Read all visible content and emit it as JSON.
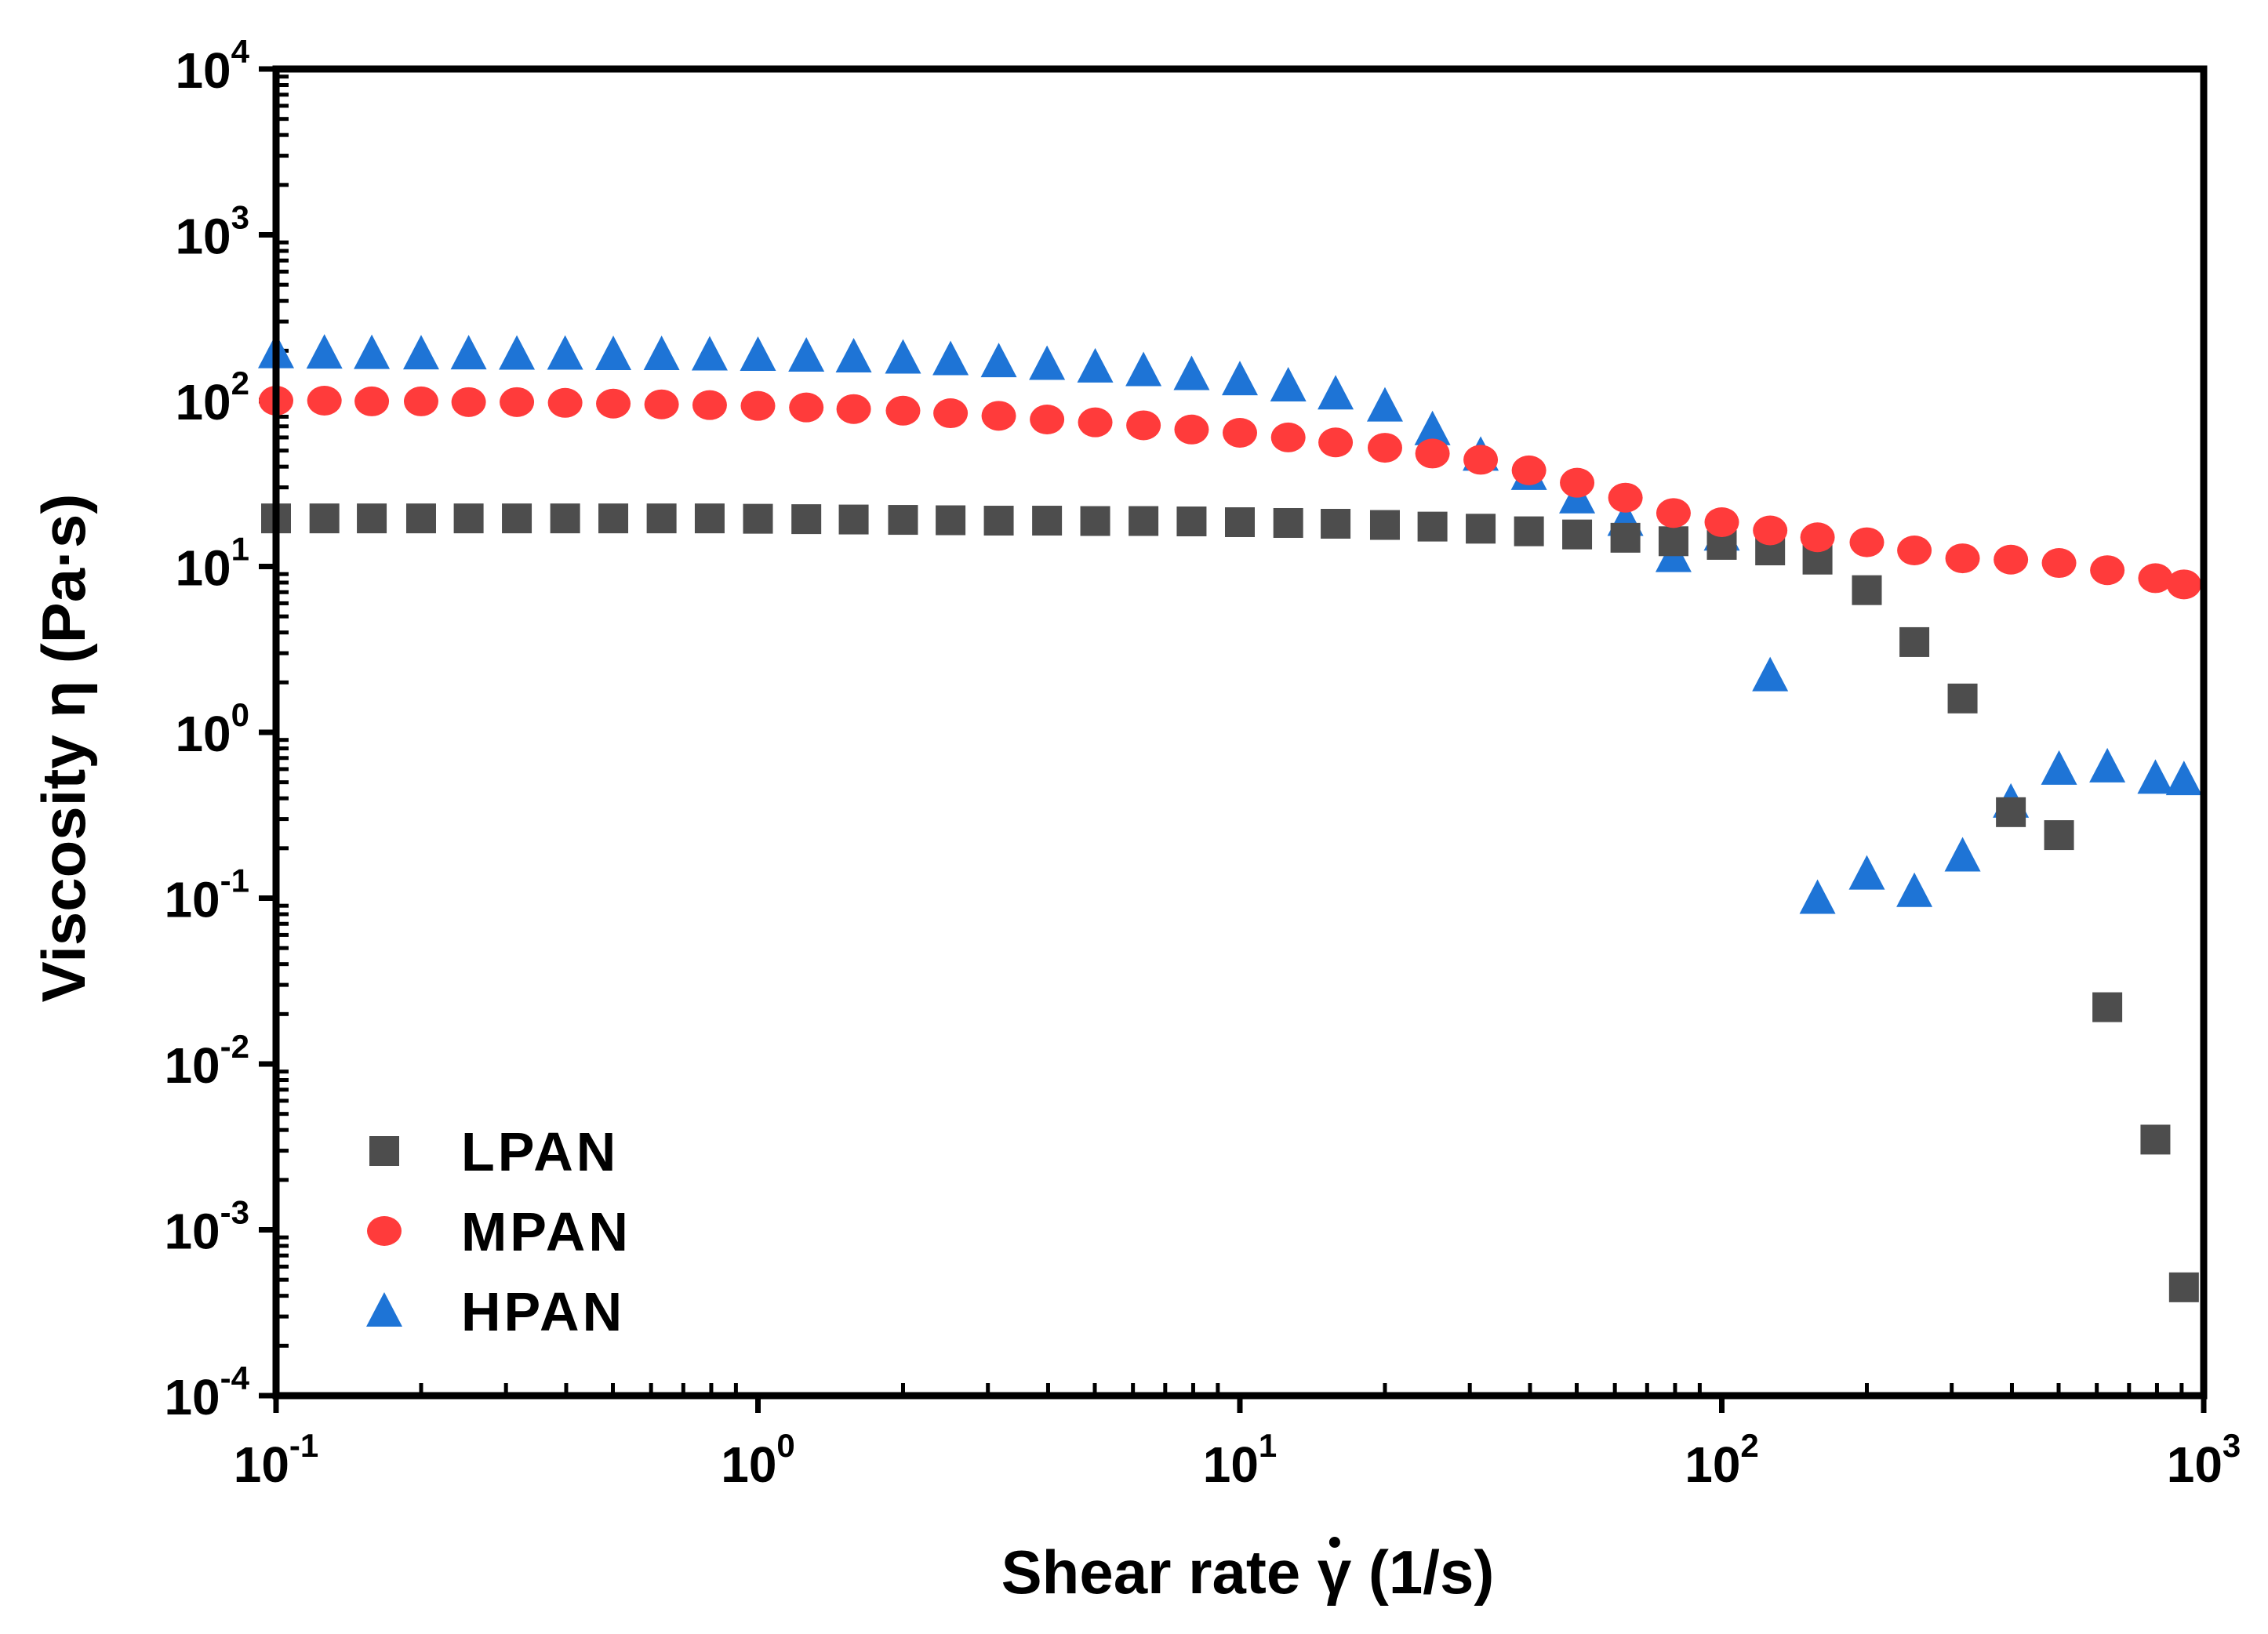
{
  "chart_data": {
    "type": "scatter",
    "title": "",
    "xlabel": "Shear rate γ̇ (1/s)",
    "xlabel_parts": {
      "pre": "Shear rate ",
      "symbol": "γ",
      "post": "  (1/s)"
    },
    "ylabel": "Viscosity η (Pa·s)",
    "xscale": "log",
    "yscale": "log",
    "xlim": [
      0.1,
      1000
    ],
    "ylim": [
      0.0001,
      10000
    ],
    "x_ticks": [
      {
        "value": 0.1,
        "base": "10",
        "exp": "-1"
      },
      {
        "value": 1,
        "base": "10",
        "exp": "0"
      },
      {
        "value": 10,
        "base": "10",
        "exp": "1"
      },
      {
        "value": 100,
        "base": "10",
        "exp": "2"
      },
      {
        "value": 1000,
        "base": "10",
        "exp": "3"
      }
    ],
    "y_ticks": [
      {
        "value": 0.0001,
        "base": "10",
        "exp": "-4"
      },
      {
        "value": 0.001,
        "base": "10",
        "exp": "-3"
      },
      {
        "value": 0.01,
        "base": "10",
        "exp": "-2"
      },
      {
        "value": 0.1,
        "base": "10",
        "exp": "-1"
      },
      {
        "value": 1,
        "base": "10",
        "exp": "0"
      },
      {
        "value": 10,
        "base": "10",
        "exp": "1"
      },
      {
        "value": 100,
        "base": "10",
        "exp": "2"
      },
      {
        "value": 1000,
        "base": "10",
        "exp": "3"
      },
      {
        "value": 10000,
        "base": "10",
        "exp": "4"
      }
    ],
    "legend_position": "bottom-left",
    "series": [
      {
        "name": "LPAN",
        "marker": "square",
        "color": "#4d4d4d",
        "x": [
          0.1,
          0.126,
          0.158,
          0.2,
          0.251,
          0.316,
          0.398,
          0.501,
          0.631,
          0.794,
          1,
          1.26,
          1.58,
          2,
          2.51,
          3.16,
          3.98,
          5.01,
          6.31,
          7.94,
          10,
          12.6,
          15.8,
          20,
          25.1,
          31.6,
          39.8,
          50.1,
          63.1,
          79.4,
          100,
          126,
          158,
          200,
          251,
          316,
          398,
          501,
          631,
          794,
          910
        ],
        "y": [
          19.5,
          19.5,
          19.5,
          19.5,
          19.5,
          19.5,
          19.5,
          19.5,
          19.5,
          19.5,
          19.4,
          19.3,
          19.2,
          19.1,
          19,
          18.9,
          18.9,
          18.8,
          18.8,
          18.7,
          18.5,
          18.3,
          18.1,
          17.8,
          17.4,
          16.9,
          16.3,
          15.6,
          14.9,
          14.2,
          13.5,
          12.5,
          11,
          7.2,
          3.5,
          1.6,
          0.33,
          0.24,
          0.022,
          0.0035,
          0.00045
        ]
      },
      {
        "name": "MPAN",
        "marker": "circle",
        "color": "#ff3b3b",
        "x": [
          0.1,
          0.126,
          0.158,
          0.2,
          0.251,
          0.316,
          0.398,
          0.501,
          0.631,
          0.794,
          1,
          1.26,
          1.58,
          2,
          2.51,
          3.16,
          3.98,
          5.01,
          6.31,
          7.94,
          10,
          12.6,
          15.8,
          20,
          25.1,
          31.6,
          39.8,
          50.1,
          63.1,
          79.4,
          100,
          126,
          158,
          200,
          251,
          316,
          398,
          501,
          631,
          794,
          910
        ],
        "y": [
          100,
          100,
          99,
          99,
          98,
          98,
          97,
          96,
          95,
          94,
          93,
          91,
          89,
          87,
          84,
          81,
          77,
          74,
          71,
          67,
          64,
          60,
          56,
          52,
          48,
          44,
          38,
          32,
          26,
          21,
          18.5,
          16.5,
          15,
          14,
          12.5,
          11.2,
          11,
          10.5,
          9.5,
          8.5,
          7.8
        ]
      },
      {
        "name": "HPAN",
        "marker": "triangle",
        "color": "#1e74d6",
        "x": [
          0.1,
          0.126,
          0.158,
          0.2,
          0.251,
          0.316,
          0.398,
          0.501,
          0.631,
          0.794,
          1,
          1.26,
          1.58,
          2,
          2.51,
          3.16,
          3.98,
          5.01,
          6.31,
          7.94,
          10,
          12.6,
          15.8,
          20,
          25.1,
          31.6,
          39.8,
          50.1,
          63.1,
          79.4,
          100,
          126,
          158,
          200,
          251,
          316,
          398,
          501,
          631,
          794,
          910
        ],
        "y": [
          195,
          194,
          193,
          192,
          192,
          191,
          191,
          190,
          190,
          189,
          188,
          186,
          184,
          181,
          177,
          172,
          166,
          160,
          152,
          144,
          134,
          123,
          110,
          93,
          67,
          47,
          36,
          26,
          19,
          11.5,
          15.5,
          2.2,
          0.1,
          0.14,
          0.11,
          0.18,
          0.38,
          0.6,
          0.62,
          0.53,
          0.52
        ]
      }
    ]
  }
}
